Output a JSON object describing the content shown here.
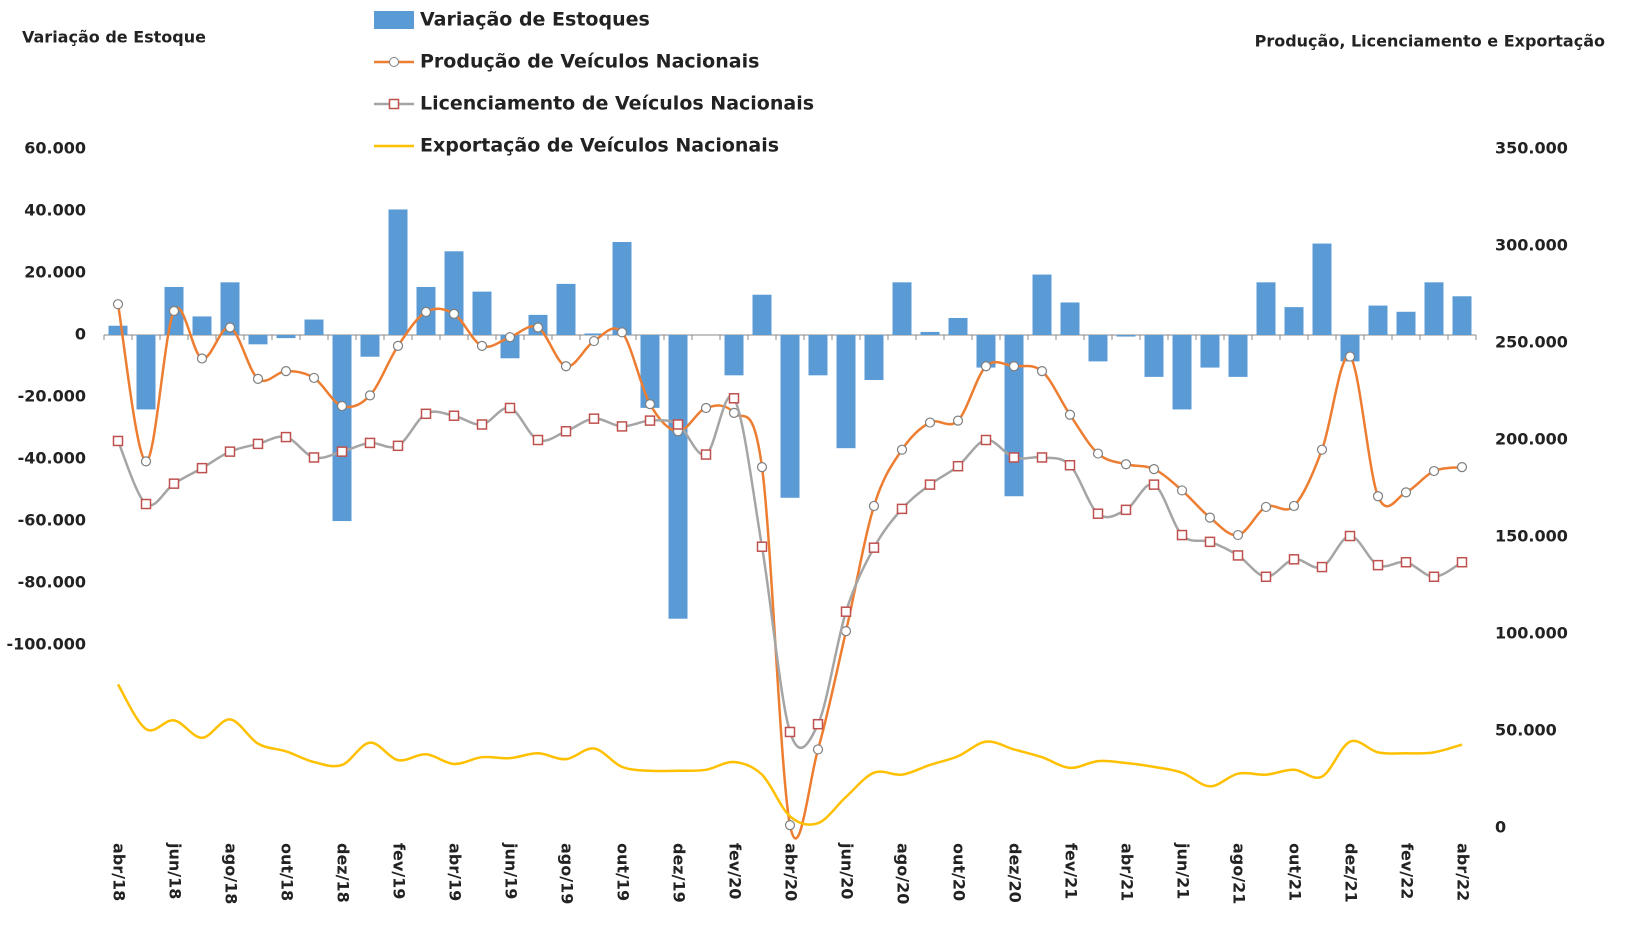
{
  "chart_data": {
    "type": "bar",
    "y_label": "Variação de Estoque",
    "y2_label": "Produção, Licenciamento e Exportação",
    "categories": [
      "abr/18",
      null,
      "jun/18",
      null,
      "ago/18",
      null,
      "out/18",
      null,
      "dez/18",
      null,
      "fev/19",
      null,
      "abr/19",
      null,
      "jun/19",
      null,
      "ago/19",
      null,
      "out/19",
      null,
      "dez/19",
      null,
      "fev/20",
      null,
      "abr/20",
      null,
      "jun/20",
      null,
      "ago/20",
      null,
      "out/20",
      null,
      "dez/20",
      null,
      "fev/21",
      null,
      "abr/21",
      null,
      "jun/21",
      null,
      "ago/21",
      null,
      "out/21",
      null,
      "dez/21",
      null,
      "fev/22",
      null,
      "abr/22"
    ],
    "series": [
      {
        "name": "Variação de Estoques",
        "type": "bar",
        "color": "#5b9bd5",
        "values": [
          3000,
          -24000,
          15500,
          6000,
          17000,
          -3000,
          -1000,
          5000,
          -60000,
          -7000,
          40500,
          15500,
          27000,
          14000,
          -7500,
          6500,
          16500,
          500,
          30000,
          -23500,
          -91500,
          0,
          -13000,
          13000,
          -52500,
          -13000,
          -36500,
          -14500,
          17000,
          1000,
          5500,
          -10500,
          -52000,
          19500,
          10500,
          -8500,
          -500,
          -13500,
          -24000,
          -10500,
          -13500,
          17000,
          9000,
          29500,
          -8500,
          9500,
          7500,
          17000,
          12500
        ]
      },
      {
        "name": "Produção de Veículos Nacionais",
        "type": "line",
        "axis": "y2",
        "color": "#ed7d31",
        "marker": "circle",
        "values": [
          270000,
          189000,
          266500,
          242000,
          258000,
          231500,
          235500,
          232000,
          217500,
          223000,
          248500,
          266000,
          265000,
          248500,
          253000,
          258000,
          238000,
          251000,
          255500,
          218500,
          204500,
          216500,
          214000,
          186000,
          1500,
          40500,
          101500,
          166000,
          195000,
          209000,
          210000,
          238000,
          238000,
          235500,
          213000,
          193000,
          187500,
          185000,
          174000,
          160000,
          151000,
          165500,
          166000,
          195000,
          243000,
          171000,
          173000,
          184000,
          186000
        ]
      },
      {
        "name": "Licenciamento de Veículos Nacionais",
        "type": "line",
        "axis": "y2",
        "color": "#a5a5a5",
        "marker": "square",
        "values": [
          199500,
          167000,
          177500,
          185500,
          194000,
          198000,
          201500,
          191000,
          194000,
          198500,
          197000,
          213500,
          212500,
          208000,
          216500,
          200000,
          204500,
          211000,
          207000,
          210000,
          208000,
          192500,
          221500,
          145000,
          49500,
          53500,
          111500,
          144500,
          164500,
          177000,
          186500,
          200000,
          191000,
          191000,
          187000,
          162000,
          164000,
          177000,
          151000,
          147500,
          140500,
          129500,
          138500,
          134500,
          150500,
          135500,
          137000,
          129500,
          137000
        ]
      },
      {
        "name": "Exportação de Veículos Nacionais",
        "type": "line",
        "axis": "y2",
        "color": "#ffc000",
        "values": [
          74000,
          51000,
          55500,
          46500,
          56000,
          43500,
          39500,
          34000,
          32500,
          44000,
          35000,
          38000,
          33000,
          36500,
          36000,
          38500,
          35500,
          41000,
          31500,
          29500,
          29500,
          30000,
          34000,
          27500,
          6000,
          2500,
          16000,
          28500,
          27500,
          32500,
          37000,
          44500,
          40500,
          36500,
          31000,
          34500,
          33500,
          31500,
          28500,
          21500,
          28000,
          27500,
          30000,
          26500,
          44500,
          39000,
          38500,
          39000,
          43000
        ]
      }
    ],
    "ylim": [
      -159000,
      60000
    ],
    "yticks": [
      {
        "value": 60000,
        "label": "60.000"
      },
      {
        "value": 40000,
        "label": "40.000"
      },
      {
        "value": 20000,
        "label": "20.000"
      },
      0,
      {
        "value": -20000,
        "label": "-20.000"
      },
      {
        "value": -40000,
        "label": "-40.000"
      },
      {
        "value": -60000,
        "label": "-60.000"
      },
      {
        "value": -80000,
        "label": "-80.000"
      },
      {
        "value": -100000,
        "label": "-100.000"
      }
    ],
    "y2lim": [
      0,
      350000
    ],
    "y2ticks": [
      0,
      {
        "value": 50000,
        "label": "50.000"
      },
      {
        "value": 100000,
        "label": "100.000"
      },
      {
        "value": 150000,
        "label": "150.000"
      },
      {
        "value": 200000,
        "label": "200.000"
      },
      {
        "value": 250000,
        "label": "250.000"
      },
      {
        "value": 300000,
        "label": "300.000"
      },
      {
        "value": 350000,
        "label": "350.000"
      }
    ],
    "grid": false
  }
}
